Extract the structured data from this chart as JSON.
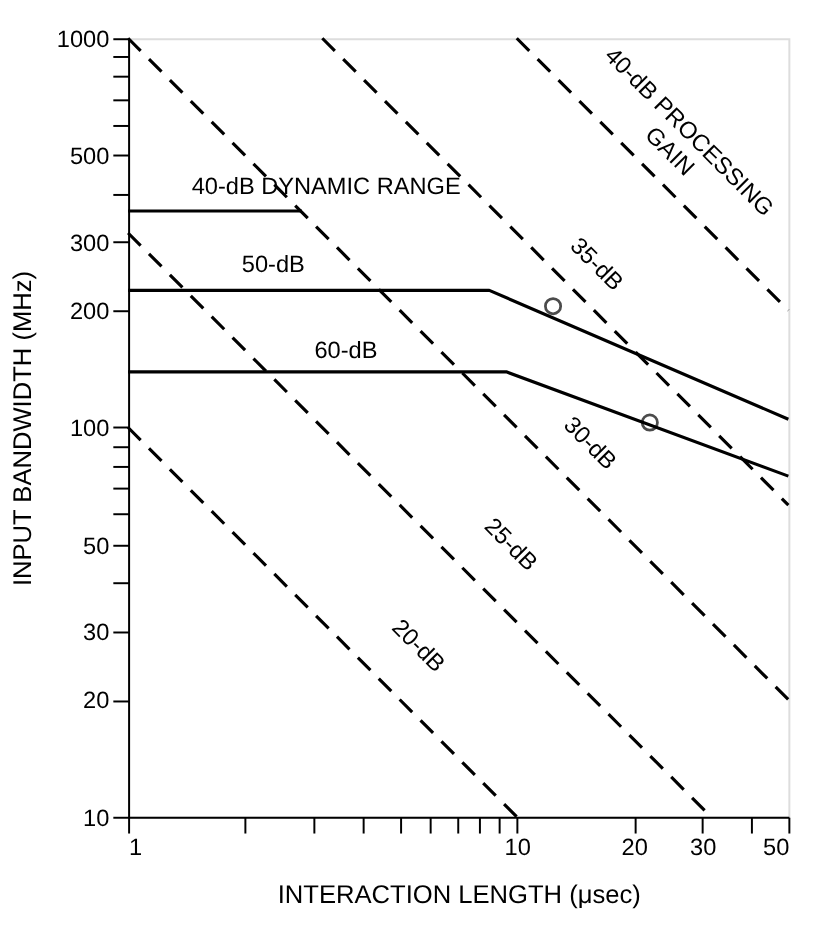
{
  "chart_data": {
    "type": "line",
    "xlabel": "INTERACTION LENGTH (μsec)",
    "ylabel": "INPUT BANDWIDTH (MHz)",
    "log": "xy",
    "xlim": [
      1,
      50
    ],
    "ylim": [
      10,
      1000
    ],
    "xticks": [
      1,
      {
        "value": 2,
        "label": null
      },
      {
        "value": 3,
        "label": null
      },
      {
        "value": 4,
        "label": null
      },
      {
        "value": 5,
        "label": null
      },
      {
        "value": 6,
        "label": null
      },
      {
        "value": 7,
        "label": null
      },
      {
        "value": 8,
        "label": null
      },
      {
        "value": 9,
        "label": null
      },
      10,
      20,
      30,
      {
        "value": 40,
        "label": null
      },
      50
    ],
    "yticks": [
      10,
      20,
      30,
      {
        "value": 40,
        "label": null
      },
      50,
      {
        "value": 60,
        "label": null
      },
      {
        "value": 70,
        "label": null
      },
      {
        "value": 80,
        "label": null
      },
      {
        "value": 90,
        "label": null
      },
      100,
      200,
      300,
      {
        "value": 400,
        "label": null
      },
      500,
      {
        "value": 600,
        "label": null
      },
      {
        "value": 700,
        "label": null
      },
      {
        "value": 800,
        "label": null
      },
      {
        "value": 900,
        "label": null
      },
      1000
    ],
    "grid": false,
    "series": [
      {
        "color": "#000000",
        "line_style": "dashed",
        "x": [
          1,
          10
        ],
        "values": [
          100,
          10
        ]
      },
      {
        "color": "#000000",
        "line_style": "dashed",
        "x": [
          1,
          31.6
        ],
        "values": [
          316,
          10
        ]
      },
      {
        "color": "#000000",
        "line_style": "dashed",
        "x": [
          1,
          50
        ],
        "values": [
          1000,
          20
        ]
      },
      {
        "color": "#000000",
        "line_style": "dashed",
        "x": [
          3.16,
          50
        ],
        "values": [
          1000,
          63.2
        ]
      },
      {
        "color": "#000000",
        "line_style": "dashed",
        "x": [
          10,
          50
        ],
        "values": [
          1000,
          200
        ]
      },
      {
        "color": "#000000",
        "line_style": "solid",
        "x": [
          1,
          2.8
        ],
        "values": [
          360,
          360
        ]
      },
      {
        "color": "#000000",
        "line_style": "solid",
        "x": [
          1,
          8.5,
          50
        ],
        "values": [
          225,
          225,
          105
        ]
      },
      {
        "color": "#000000",
        "line_style": "solid",
        "x": [
          1,
          9.4,
          50
        ],
        "values": [
          139,
          139,
          75
        ]
      },
      {
        "type": "scatter",
        "marker": "circle",
        "color": "#000000",
        "x": [
          12.4,
          22
        ],
        "values": [
          205,
          103
        ]
      }
    ],
    "annotations": [
      "20-dB",
      "25-dB",
      "30-dB",
      "35-dB",
      "40-dB PROCESSING\nGAIN",
      "40-dB DYNAMIC RANGE",
      "50-dB",
      "60-dB"
    ]
  }
}
